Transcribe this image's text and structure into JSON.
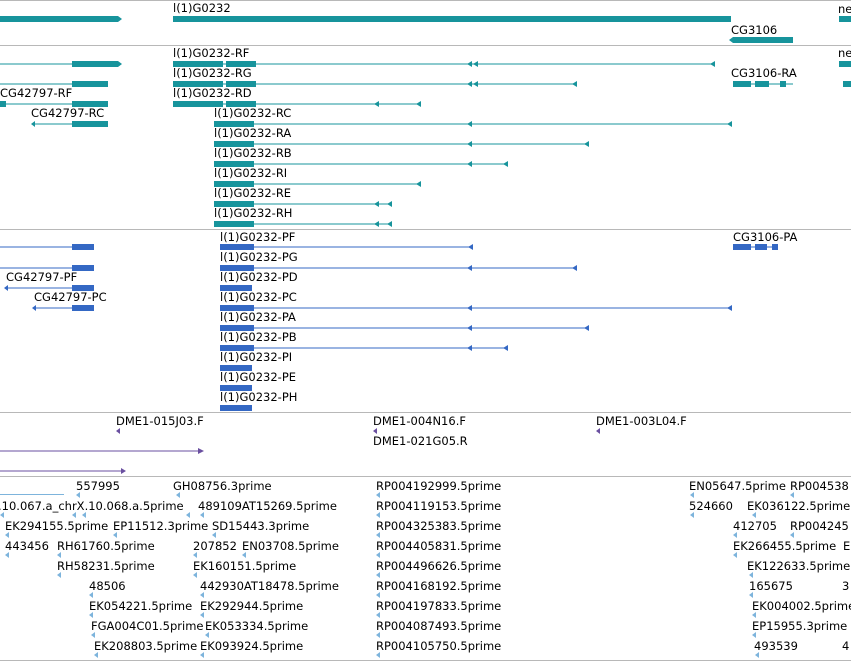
{
  "genes_track": {
    "labels": [
      "l(1)G0232",
      "CG3106",
      "ne"
    ]
  },
  "transcripts_track": {
    "labels": [
      "l(1)G0232-RF",
      "l(1)G0232-RG",
      "l(1)G0232-RD",
      "CG42797-RF",
      "CG42797-RC",
      "l(1)G0232-RC",
      "l(1)G0232-RA",
      "l(1)G0232-RB",
      "l(1)G0232-RI",
      "l(1)G0232-RE",
      "l(1)G0232-RH",
      "CG3106-RA",
      "ne"
    ]
  },
  "proteins_track": {
    "labels": [
      "l(1)G0232-PF",
      "l(1)G0232-PG",
      "l(1)G0232-PD",
      "l(1)G0232-PC",
      "l(1)G0232-PA",
      "l(1)G0232-PB",
      "l(1)G0232-PI",
      "l(1)G0232-PE",
      "l(1)G0232-PH",
      "CG3106-PA",
      "CG42797-PF",
      "CG42797-PC"
    ]
  },
  "clones_track": {
    "labels": [
      "DME1-015J03.F",
      "DME1-004N16.F",
      "DME1-021G05.R",
      "DME1-003L04.F"
    ]
  },
  "est_track": {
    "labels": [
      "557995",
      ".10.067.a_chrX.10.068.a.5prime",
      "GH08756.3prime",
      "489109AT15269.5prime",
      "EK294155.5prime",
      "EP11512.3prime",
      "SD15443.3prime",
      "443456",
      "RH61760.5prime",
      "207852",
      "EN03708.5prime",
      "RH58231.5prime",
      "EK160151.5prime",
      "48506",
      "442930AT18478.5prime",
      "EK054221.5prime",
      "EK292944.5prime",
      "FGA004C01.5prime",
      "EK053334.5prime",
      "EK208803.5prime",
      "EK093924.5prime",
      "RP004192999.5prime",
      "RP004119153.5prime",
      "RP004325383.5prime",
      "RP004405831.5prime",
      "RP004496626.5prime",
      "RP004168192.5prime",
      "RP004197833.5prime",
      "RP004087493.5prime",
      "RP004105750.5prime",
      "EN05647.5prime",
      "RP004538",
      "524660",
      "EK036122.5prime",
      "412705",
      "RP004245",
      "EK266455.5prime",
      "E",
      "EK122633.5prime",
      "165675",
      "3",
      "EK004002.5prime",
      "EP15955.3prime",
      "493539",
      "4"
    ]
  },
  "colors": {
    "transcript": "#17949c",
    "protein": "#3468c4",
    "clone": "#6a4fa0",
    "est": "#7db4dc",
    "separator": "#b8b8b8"
  }
}
